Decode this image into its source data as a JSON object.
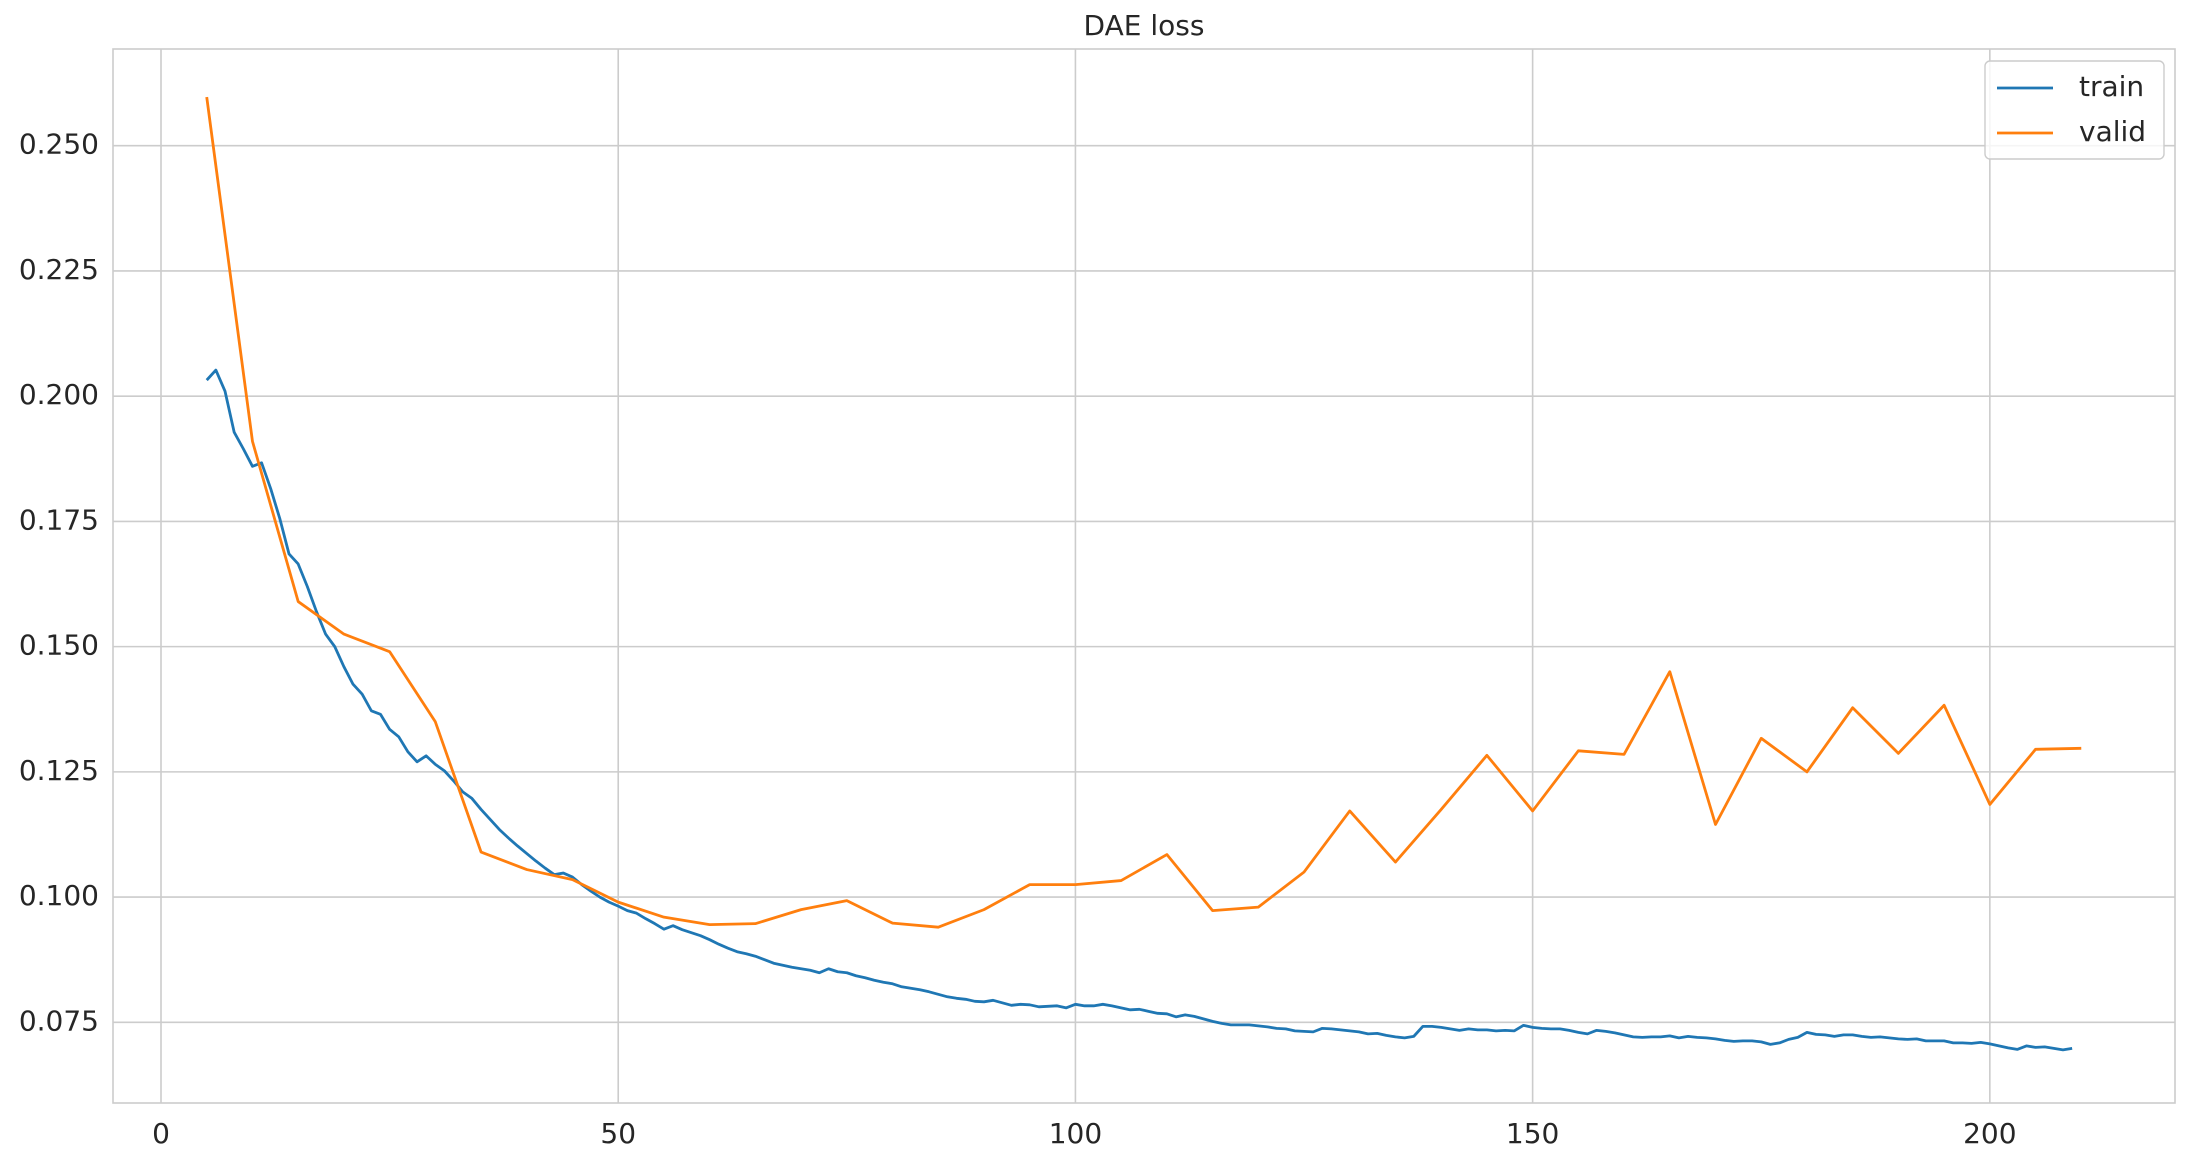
{
  "chart_data": {
    "type": "line",
    "title": "DAE loss",
    "xlim": [
      -5.25,
      220.25
    ],
    "xticks": [
      0,
      50,
      100,
      150,
      200
    ],
    "ylim": [
      0.0589,
      0.2693
    ],
    "yticks": [
      0.075,
      {
        "value": 0.1,
        "label": "0.100"
      },
      0.125,
      {
        "value": 0.15,
        "label": "0.150"
      },
      0.175,
      {
        "value": 0.2,
        "label": "0.200"
      },
      0.225,
      {
        "value": 0.25,
        "label": "0.250"
      }
    ],
    "grid": true,
    "legend": "upper right",
    "series": [
      {
        "name": "train",
        "color": "#1f77b4",
        "x": [
          5,
          6,
          7,
          8,
          9,
          10,
          11,
          12,
          13,
          14,
          15,
          16,
          17,
          18,
          19,
          20,
          21,
          22,
          23,
          24,
          25,
          26,
          27,
          28,
          29,
          30,
          31,
          32,
          33,
          34,
          35,
          36,
          37,
          38,
          39,
          40,
          41,
          42,
          43,
          44,
          45,
          46,
          47,
          48,
          49,
          50,
          51,
          52,
          53,
          54,
          55,
          56,
          57,
          58,
          59,
          60,
          61,
          62,
          63,
          64,
          65,
          66,
          67,
          68,
          69,
          70,
          71,
          72,
          73,
          74,
          75,
          76,
          77,
          78,
          79,
          80,
          81,
          82,
          83,
          84,
          85,
          86,
          87,
          88,
          89,
          90,
          91,
          92,
          93,
          94,
          95,
          96,
          97,
          98,
          99,
          100,
          101,
          102,
          103,
          104,
          105,
          106,
          107,
          108,
          109,
          110,
          111,
          112,
          113,
          114,
          115,
          116,
          117,
          118,
          119,
          120,
          121,
          122,
          123,
          124,
          125,
          126,
          127,
          128,
          129,
          130,
          131,
          132,
          133,
          134,
          135,
          136,
          137,
          138,
          139,
          140,
          141,
          142,
          143,
          144,
          145,
          146,
          147,
          148,
          149,
          150,
          151,
          152,
          153,
          154,
          155,
          156,
          157,
          158,
          159,
          160,
          161,
          162,
          163,
          164,
          165,
          166,
          167,
          168,
          169,
          170,
          171,
          172,
          173,
          174,
          175,
          176,
          177,
          178,
          179,
          180,
          181,
          182,
          183,
          184,
          185,
          186,
          187,
          188,
          189,
          190,
          191,
          192,
          193,
          194,
          195,
          196,
          197,
          198,
          199,
          200,
          201,
          202,
          203,
          204,
          205,
          206,
          207,
          208,
          209
        ],
        "values": [
          0.2032,
          0.2052,
          0.201,
          0.1928,
          0.1895,
          0.186,
          0.1867,
          0.1815,
          0.1755,
          0.1685,
          0.1665,
          0.162,
          0.157,
          0.1525,
          0.15,
          0.146,
          0.1425,
          0.1405,
          0.1372,
          0.1365,
          0.1335,
          0.132,
          0.129,
          0.127,
          0.1282,
          0.1265,
          0.1252,
          0.1232,
          0.121,
          0.1197,
          0.1175,
          0.1155,
          0.1135,
          0.1118,
          0.1102,
          0.1087,
          0.1072,
          0.1058,
          0.1045,
          0.1048,
          0.104,
          0.1025,
          0.1012,
          0.1,
          0.099,
          0.0982,
          0.0973,
          0.0968,
          0.0957,
          0.0947,
          0.0936,
          0.0943,
          0.0935,
          0.0929,
          0.0923,
          0.0915,
          0.0906,
          0.0898,
          0.0891,
          0.0887,
          0.0882,
          0.0875,
          0.0868,
          0.0864,
          0.086,
          0.0857,
          0.0854,
          0.0849,
          0.0857,
          0.0851,
          0.0849,
          0.0843,
          0.0839,
          0.0834,
          0.083,
          0.0827,
          0.0821,
          0.0818,
          0.0815,
          0.0811,
          0.0806,
          0.0801,
          0.0798,
          0.0796,
          0.0792,
          0.0791,
          0.0794,
          0.0789,
          0.0784,
          0.0786,
          0.0785,
          0.0781,
          0.0782,
          0.0783,
          0.0779,
          0.0786,
          0.0783,
          0.0783,
          0.0786,
          0.0783,
          0.0779,
          0.0775,
          0.0776,
          0.0772,
          0.0768,
          0.0767,
          0.0761,
          0.0765,
          0.0762,
          0.0757,
          0.0752,
          0.0748,
          0.0745,
          0.0745,
          0.0745,
          0.0743,
          0.0741,
          0.0738,
          0.0737,
          0.0733,
          0.0732,
          0.0731,
          0.0738,
          0.0737,
          0.0735,
          0.0733,
          0.0731,
          0.0727,
          0.0728,
          0.0724,
          0.0721,
          0.0719,
          0.0722,
          0.0742,
          0.0742,
          0.074,
          0.0737,
          0.0734,
          0.0737,
          0.0735,
          0.0735,
          0.0733,
          0.0734,
          0.0733,
          0.0744,
          0.074,
          0.0738,
          0.0737,
          0.0737,
          0.0734,
          0.073,
          0.0727,
          0.0734,
          0.0732,
          0.0729,
          0.0725,
          0.0721,
          0.072,
          0.0721,
          0.0721,
          0.0723,
          0.0719,
          0.0722,
          0.072,
          0.0719,
          0.0717,
          0.0714,
          0.0712,
          0.0713,
          0.0713,
          0.0711,
          0.0706,
          0.0709,
          0.0716,
          0.072,
          0.073,
          0.0726,
          0.0725,
          0.0722,
          0.0725,
          0.0725,
          0.0722,
          0.072,
          0.0721,
          0.0719,
          0.0717,
          0.0716,
          0.0717,
          0.0713,
          0.0713,
          0.0713,
          0.0709,
          0.0709,
          0.0708,
          0.071,
          0.0707,
          0.0703,
          0.0699,
          0.0696,
          0.0703,
          0.07,
          0.0701,
          0.0698,
          0.0695,
          0.0698
        ]
      },
      {
        "name": "valid",
        "color": "#ff7f0e",
        "x": [
          5,
          10,
          15,
          20,
          25,
          30,
          35,
          40,
          45,
          50,
          55,
          60,
          65,
          70,
          75,
          80,
          85,
          90,
          95,
          100,
          105,
          110,
          115,
          120,
          125,
          130,
          135,
          140,
          145,
          150,
          155,
          160,
          165,
          170,
          175,
          180,
          185,
          190,
          195,
          200,
          205,
          210
        ],
        "values": [
          0.2597,
          0.191,
          0.159,
          0.1525,
          0.149,
          0.135,
          0.109,
          0.1055,
          0.1035,
          0.099,
          0.096,
          0.0945,
          0.0947,
          0.0975,
          0.0993,
          0.0948,
          0.094,
          0.0975,
          0.1025,
          0.1025,
          0.1033,
          0.1085,
          0.0973,
          0.098,
          0.105,
          0.1172,
          0.107,
          0.1175,
          0.1283,
          0.1172,
          0.1292,
          0.1285,
          0.145,
          0.1145,
          0.1317,
          0.125,
          0.1378,
          0.1287,
          0.1383,
          0.1185,
          0.1295,
          0.1297
        ]
      }
    ]
  }
}
